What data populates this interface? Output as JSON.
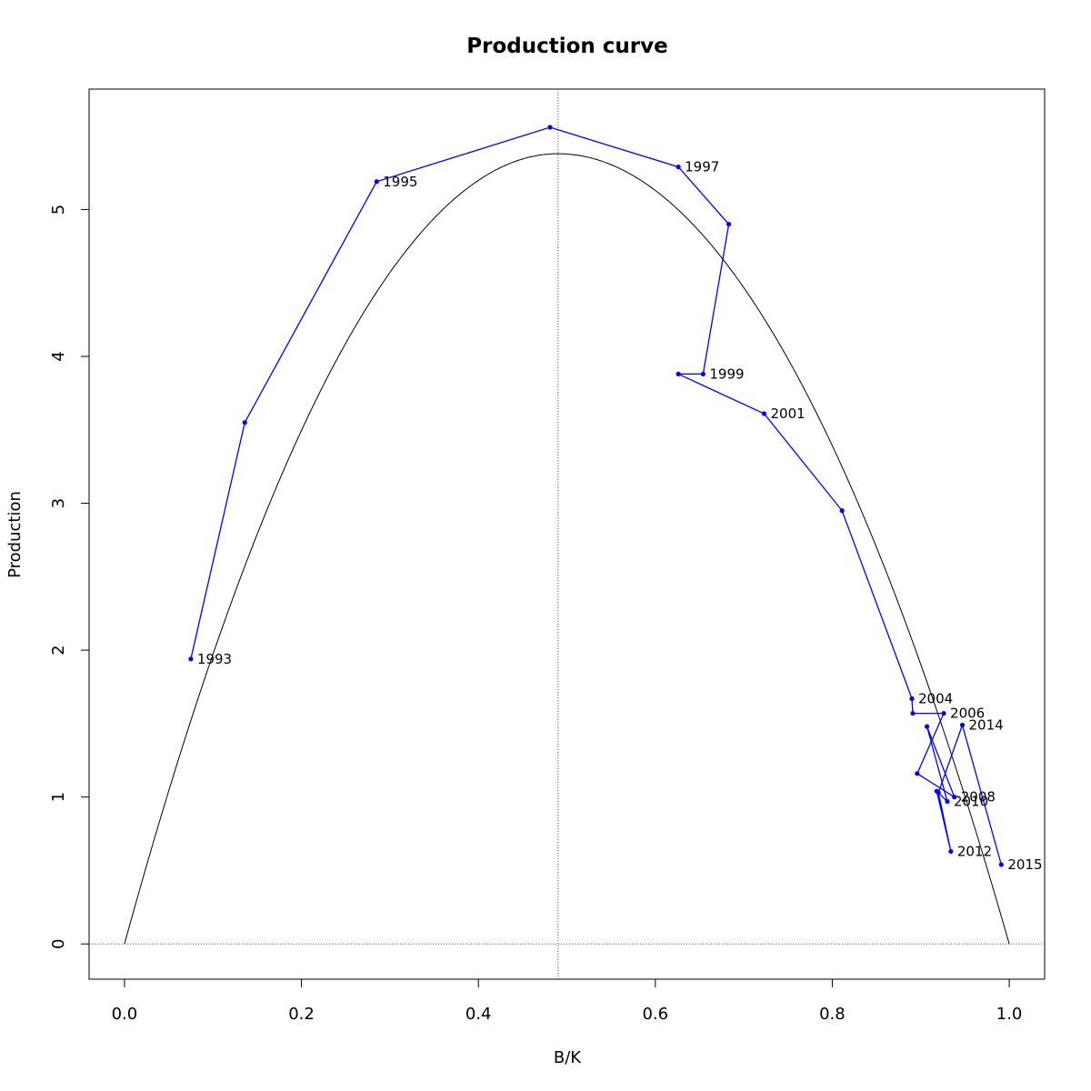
{
  "chart_data": {
    "type": "line",
    "title": "Production curve",
    "xlabel": "B/K",
    "ylabel": "Production",
    "xlim": [
      -0.04,
      1.04
    ],
    "ylim": [
      -0.24,
      5.82
    ],
    "xticks": [
      0.0,
      0.2,
      0.4,
      0.6,
      0.8,
      1.0
    ],
    "xtick_labels": [
      "0.0",
      "0.2",
      "0.4",
      "0.6",
      "0.8",
      "1.0"
    ],
    "yticks": [
      0,
      1,
      2,
      3,
      4,
      5
    ],
    "ytick_labels": [
      "0",
      "1",
      "2",
      "3",
      "4",
      "5"
    ],
    "grid": false,
    "reference_lines": {
      "vertical_x": 0.49,
      "horizontal_y": 0
    },
    "model_curve": {
      "color": "#000000",
      "peak_x": 0.49,
      "peak_y": 5.38,
      "x_start": 0.0,
      "x_end": 1.0
    },
    "series": [
      {
        "color": "#0000ff",
        "points": [
          {
            "x": 0.075,
            "y": 1.94,
            "label": "1993"
          },
          {
            "x": 0.136,
            "y": 3.55,
            "label": ""
          },
          {
            "x": 0.285,
            "y": 5.19,
            "label": "1995"
          },
          {
            "x": 0.481,
            "y": 5.56,
            "label": ""
          },
          {
            "x": 0.626,
            "y": 5.29,
            "label": "1997"
          },
          {
            "x": 0.683,
            "y": 4.9,
            "label": ""
          },
          {
            "x": 0.654,
            "y": 3.88,
            "label": "1999"
          },
          {
            "x": 0.626,
            "y": 3.88,
            "label": ""
          },
          {
            "x": 0.723,
            "y": 3.61,
            "label": "2001"
          },
          {
            "x": 0.811,
            "y": 2.95,
            "label": ""
          },
          {
            "x": 0.89,
            "y": 1.67,
            "label": ""
          },
          {
            "x": 0.89,
            "y": 1.67,
            "label": "2004"
          },
          {
            "x": 0.891,
            "y": 1.57,
            "label": ""
          },
          {
            "x": 0.926,
            "y": 1.57,
            "label": "2006"
          },
          {
            "x": 0.896,
            "y": 1.16,
            "label": ""
          },
          {
            "x": 0.938,
            "y": 1.0,
            "label": "2008"
          },
          {
            "x": 0.907,
            "y": 1.48,
            "label": ""
          },
          {
            "x": 0.93,
            "y": 0.97,
            "label": "2010"
          },
          {
            "x": 0.918,
            "y": 1.04,
            "label": ""
          },
          {
            "x": 0.934,
            "y": 0.63,
            "label": "2012"
          },
          {
            "x": 0.92,
            "y": 1.03,
            "label": ""
          },
          {
            "x": 0.947,
            "y": 1.49,
            "label": "2014"
          },
          {
            "x": 0.991,
            "y": 0.54,
            "label": "2015"
          }
        ]
      }
    ]
  }
}
